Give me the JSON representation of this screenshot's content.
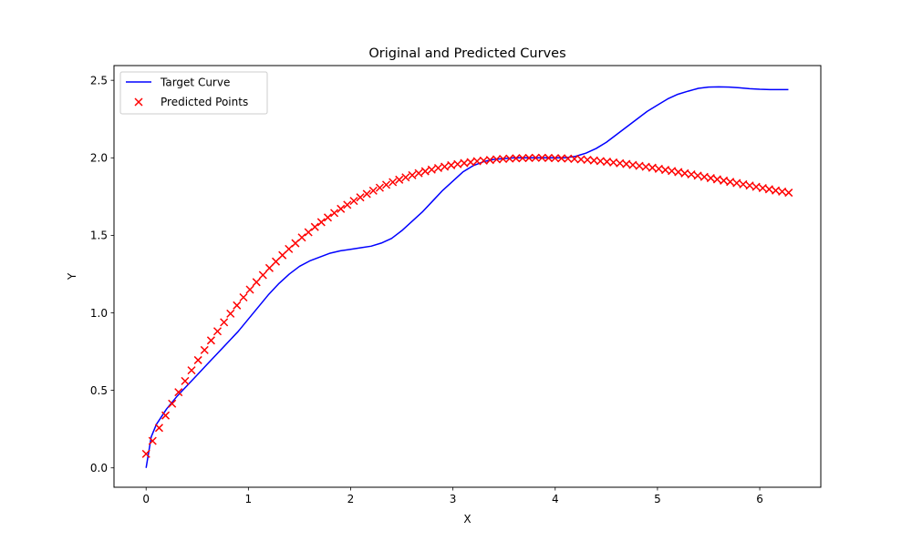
{
  "chart_data": {
    "type": "line",
    "title": "Original and Predicted Curves",
    "xlabel": "X",
    "ylabel": "Y",
    "xlim": [
      -0.314,
      6.597
    ],
    "ylim": [
      -0.125,
      2.595
    ],
    "xticks": [
      0,
      1,
      2,
      3,
      4,
      5,
      6
    ],
    "yticks": [
      0.0,
      0.5,
      1.0,
      1.5,
      2.0,
      2.5
    ],
    "xtick_labels": [
      "0",
      "1",
      "2",
      "3",
      "4",
      "5",
      "6"
    ],
    "ytick_labels": [
      "0.0",
      "0.5",
      "1.0",
      "1.5",
      "2.0",
      "2.5"
    ],
    "grid": false,
    "legend_position": "upper-left",
    "series": [
      {
        "name": "Target Curve",
        "kind": "line",
        "color": "#0000ff",
        "x": [
          0.0,
          0.05,
          0.1,
          0.2,
          0.3,
          0.4,
          0.5,
          0.6,
          0.7,
          0.8,
          0.9,
          1.0,
          1.1,
          1.2,
          1.3,
          1.4,
          1.5,
          1.6,
          1.7,
          1.8,
          1.9,
          2.0,
          2.1,
          2.2,
          2.3,
          2.4,
          2.5,
          2.6,
          2.7,
          2.8,
          2.9,
          3.0,
          3.1,
          3.2,
          3.3,
          3.4,
          3.5,
          3.6,
          3.7,
          3.8,
          3.9,
          4.0,
          4.1,
          4.2,
          4.3,
          4.4,
          4.5,
          4.6,
          4.7,
          4.8,
          4.9,
          5.0,
          5.1,
          5.2,
          5.3,
          5.4,
          5.5,
          5.6,
          5.7,
          5.8,
          5.9,
          6.0,
          6.1,
          6.2,
          6.28
        ],
        "y": [
          0.0,
          0.2,
          0.28,
          0.38,
          0.46,
          0.53,
          0.6,
          0.67,
          0.74,
          0.81,
          0.88,
          0.96,
          1.04,
          1.12,
          1.19,
          1.25,
          1.3,
          1.335,
          1.36,
          1.385,
          1.4,
          1.41,
          1.42,
          1.43,
          1.45,
          1.48,
          1.53,
          1.59,
          1.65,
          1.72,
          1.79,
          1.85,
          1.91,
          1.95,
          1.975,
          1.99,
          1.995,
          2.0,
          2.0,
          2.0,
          2.0,
          2.0,
          2.0,
          2.01,
          2.03,
          2.06,
          2.1,
          2.15,
          2.2,
          2.25,
          2.3,
          2.34,
          2.38,
          2.41,
          2.43,
          2.448,
          2.456,
          2.458,
          2.456,
          2.452,
          2.446,
          2.442,
          2.44,
          2.44,
          2.44
        ]
      },
      {
        "name": "Predicted Points",
        "kind": "scatter",
        "marker": "x",
        "color": "#ff0000",
        "x": [
          0.0,
          0.063,
          0.127,
          0.19,
          0.254,
          0.317,
          0.381,
          0.444,
          0.508,
          0.571,
          0.635,
          0.698,
          0.762,
          0.825,
          0.888,
          0.952,
          1.015,
          1.079,
          1.142,
          1.206,
          1.269,
          1.333,
          1.396,
          1.46,
          1.523,
          1.587,
          1.65,
          1.713,
          1.777,
          1.84,
          1.904,
          1.967,
          2.031,
          2.094,
          2.158,
          2.221,
          2.285,
          2.348,
          2.412,
          2.475,
          2.538,
          2.602,
          2.665,
          2.729,
          2.792,
          2.856,
          2.919,
          2.983,
          3.046,
          3.11,
          3.173,
          3.236,
          3.3,
          3.363,
          3.427,
          3.49,
          3.554,
          3.617,
          3.681,
          3.744,
          3.808,
          3.871,
          3.935,
          3.998,
          4.061,
          4.125,
          4.188,
          4.252,
          4.315,
          4.379,
          4.442,
          4.506,
          4.569,
          4.633,
          4.696,
          4.759,
          4.823,
          4.886,
          4.95,
          5.013,
          5.077,
          5.14,
          5.204,
          5.267,
          5.331,
          5.394,
          5.458,
          5.521,
          5.584,
          5.648,
          5.711,
          5.775,
          5.838,
          5.902,
          5.965,
          6.029,
          6.092,
          6.156,
          6.219,
          6.283
        ],
        "y": [
          0.09,
          0.174,
          0.258,
          0.338,
          0.414,
          0.488,
          0.56,
          0.629,
          0.695,
          0.76,
          0.822,
          0.881,
          0.939,
          0.995,
          1.048,
          1.1,
          1.15,
          1.198,
          1.244,
          1.289,
          1.331,
          1.372,
          1.412,
          1.449,
          1.486,
          1.52,
          1.554,
          1.585,
          1.615,
          1.644,
          1.671,
          1.697,
          1.722,
          1.745,
          1.767,
          1.788,
          1.807,
          1.826,
          1.843,
          1.859,
          1.874,
          1.888,
          1.901,
          1.913,
          1.924,
          1.934,
          1.943,
          1.952,
          1.959,
          1.966,
          1.972,
          1.978,
          1.982,
          1.986,
          1.99,
          1.993,
          1.995,
          1.997,
          1.998,
          1.999,
          2.0,
          2.0,
          1.999,
          1.998,
          1.997,
          1.995,
          1.993,
          1.99,
          1.987,
          1.983,
          1.979,
          1.975,
          1.97,
          1.965,
          1.96,
          1.954,
          1.948,
          1.942,
          1.936,
          1.929,
          1.922,
          1.915,
          1.908,
          1.9,
          1.893,
          1.885,
          1.877,
          1.869,
          1.861,
          1.853,
          1.845,
          1.837,
          1.829,
          1.821,
          1.813,
          1.805,
          1.797,
          1.789,
          1.782,
          1.775
        ]
      }
    ]
  }
}
